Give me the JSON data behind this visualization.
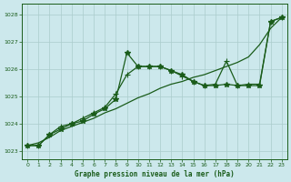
{
  "title": "Graphe pression niveau de la mer (hPa)",
  "xlim": [
    -0.5,
    23.5
  ],
  "ylim": [
    1022.7,
    1028.4
  ],
  "xticks": [
    0,
    1,
    2,
    3,
    4,
    5,
    6,
    7,
    8,
    9,
    10,
    11,
    12,
    13,
    14,
    15,
    16,
    17,
    18,
    19,
    20,
    21,
    22,
    23
  ],
  "yticks": [
    1023,
    1024,
    1025,
    1026,
    1027,
    1028
  ],
  "bg_color": "#cce8ec",
  "grid_color": "#aacccc",
  "line_color": "#1a5c1a",
  "line1": {
    "x": [
      0,
      1,
      2,
      3,
      4,
      5,
      6,
      7,
      8,
      9,
      10,
      11,
      12,
      13,
      14,
      15,
      16,
      17,
      18,
      19,
      20,
      21,
      22,
      23
    ],
    "y": [
      1023.2,
      1023.2,
      1023.6,
      1023.8,
      1024.0,
      1024.1,
      1024.35,
      1024.55,
      1024.9,
      1026.6,
      1026.1,
      1026.1,
      1026.1,
      1025.95,
      1025.8,
      1025.55,
      1025.4,
      1025.4,
      1025.45,
      1025.4,
      1025.4,
      1025.4,
      1027.75,
      1027.9
    ]
  },
  "line2": {
    "x": [
      0,
      1,
      2,
      3,
      4,
      5,
      6,
      7,
      8,
      9,
      10,
      11,
      12,
      13,
      14,
      15,
      16,
      17,
      18,
      19,
      20,
      21,
      22,
      23
    ],
    "y": [
      1023.2,
      1023.2,
      1023.6,
      1023.9,
      1024.0,
      1024.2,
      1024.4,
      1024.6,
      1025.1,
      1025.8,
      1026.1,
      1026.1,
      1026.1,
      1025.95,
      1025.75,
      1025.55,
      1025.4,
      1025.45,
      1026.3,
      1025.4,
      1025.45,
      1025.45,
      1027.75,
      1027.9
    ]
  },
  "line3": {
    "x": [
      0,
      1,
      2,
      3,
      4,
      5,
      6,
      7,
      8,
      9,
      10,
      11,
      12,
      13,
      14,
      15,
      16,
      17,
      18,
      19,
      20,
      21,
      22,
      23
    ],
    "y": [
      1023.2,
      1023.3,
      1023.5,
      1023.75,
      1023.9,
      1024.05,
      1024.2,
      1024.4,
      1024.55,
      1024.75,
      1024.95,
      1025.1,
      1025.3,
      1025.45,
      1025.55,
      1025.7,
      1025.8,
      1025.95,
      1026.1,
      1026.25,
      1026.45,
      1026.9,
      1027.5,
      1027.9
    ]
  }
}
